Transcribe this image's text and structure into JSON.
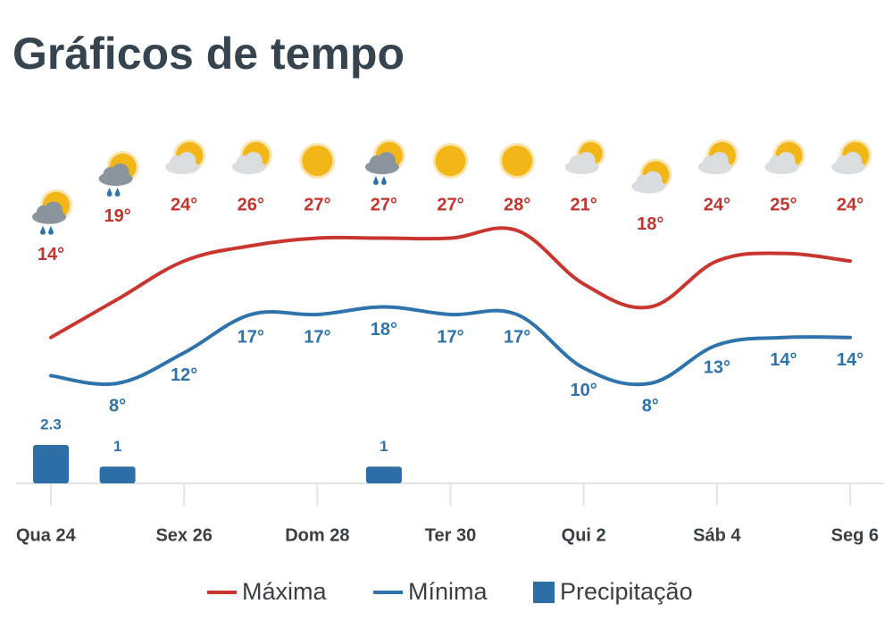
{
  "chart_data": {
    "type": "weather",
    "title": "Gráficos de tempo",
    "categories": [
      "Qua 24",
      null,
      "Sex 26",
      null,
      "Dom 28",
      null,
      "Ter 30",
      null,
      "Qui 2",
      null,
      "Sáb 4",
      null,
      "Seg 6"
    ],
    "series": [
      {
        "name": "Máxima",
        "color": "#c8362f",
        "kind": "line",
        "values": [
          14,
          19,
          24,
          26,
          27,
          27,
          27,
          28,
          21,
          18,
          24,
          25,
          24
        ],
        "value_labels": [
          "14°",
          "19°",
          "24°",
          "26°",
          "27°",
          "27°",
          "27°",
          "28°",
          "21°",
          "18°",
          "24°",
          "25°",
          "24°"
        ]
      },
      {
        "name": "Mínima",
        "color": "#2f73ac",
        "kind": "line",
        "values": [
          9,
          8,
          12,
          17,
          17,
          18,
          17,
          17,
          10,
          8,
          13,
          14,
          14
        ],
        "value_labels": [
          null,
          "8°",
          "12°",
          "17°",
          "17°",
          "18°",
          "17°",
          "17°",
          "10°",
          "8°",
          "13°",
          "14°",
          "14°"
        ]
      },
      {
        "name": "Precipitação",
        "color": "#2e6ea7",
        "kind": "bar",
        "values": [
          2.3,
          1,
          null,
          null,
          null,
          1,
          null,
          null,
          null,
          null,
          null,
          null,
          null
        ]
      }
    ]
  }
}
